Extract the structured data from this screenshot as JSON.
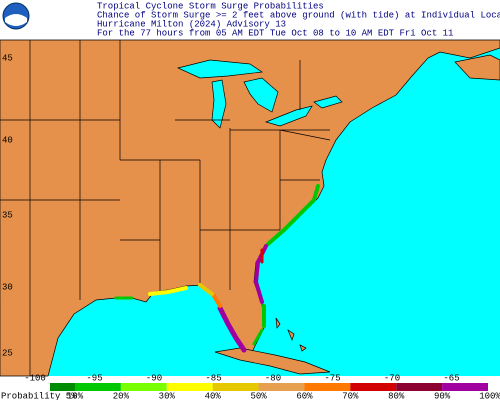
{
  "header": {
    "lines": [
      "Tropical Cyclone Storm Surge Probabilities",
      "Chance of Storm Surge >= 2 feet above ground (with tide) at Individual Locations",
      "Hurricane Milton (2024) Advisory 13",
      "For the 77 hours from 05 AM EDT Tue Oct 08 to 10 AM EDT Fri Oct 11"
    ]
  },
  "map": {
    "lat_labels": [
      45,
      40,
      35,
      30,
      25
    ],
    "lon_labels": [
      -100,
      -95,
      -90,
      -85,
      -80,
      -75,
      -70,
      -65
    ]
  },
  "legend": {
    "title": "Probability 5%",
    "labels": [
      "10%",
      "20%",
      "30%",
      "40%",
      "50%",
      "60%",
      "70%",
      "80%",
      "90%",
      "100%"
    ],
    "colors": [
      "#008c00",
      "#00c800",
      "#78ff00",
      "#ffff00",
      "#e6c800",
      "#e6a050",
      "#ff7800",
      "#d20000",
      "#8c0032",
      "#a000a0"
    ]
  }
}
